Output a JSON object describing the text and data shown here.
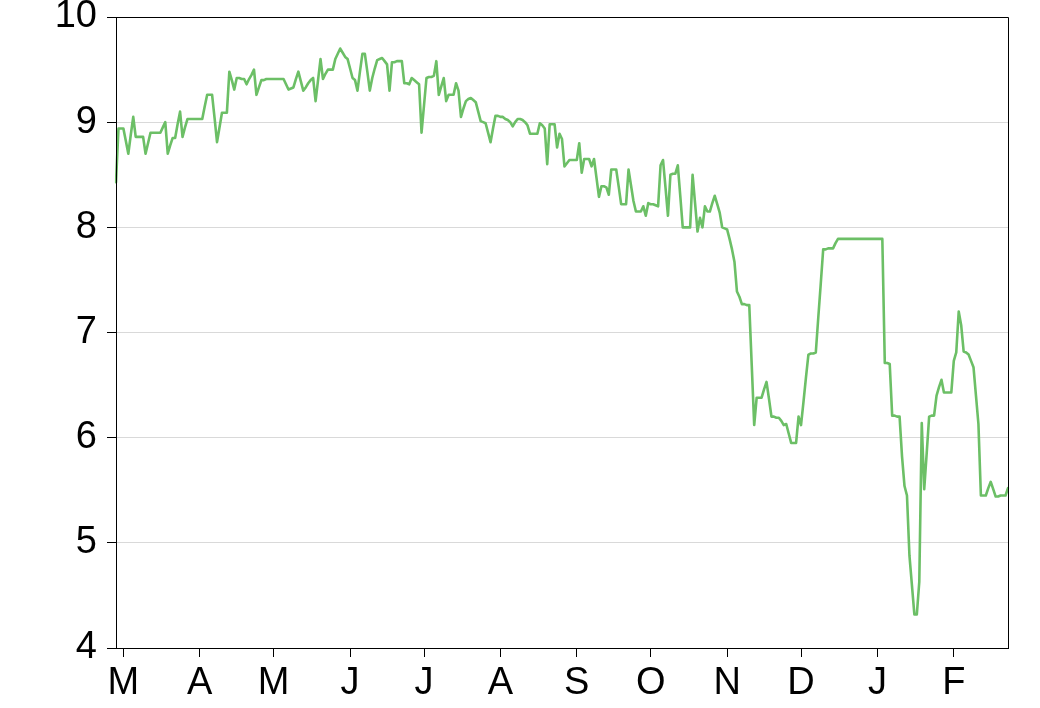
{
  "chart_data": {
    "type": "line",
    "color": "#6cbf66",
    "grid": "y",
    "ylim": [
      4,
      10
    ],
    "yticks": [
      4,
      5,
      6,
      7,
      8,
      9,
      10
    ],
    "categories": [
      null,
      null,
      null,
      "M",
      null,
      null,
      null,
      null,
      null,
      null,
      null,
      null,
      null,
      null,
      null,
      null,
      null,
      null,
      null,
      null,
      null,
      null,
      null,
      null,
      null,
      null,
      null,
      null,
      null,
      null,
      null,
      null,
      null,
      null,
      "A",
      null,
      null,
      null,
      null,
      null,
      null,
      null,
      null,
      null,
      null,
      null,
      null,
      null,
      null,
      null,
      null,
      null,
      null,
      null,
      null,
      null,
      null,
      null,
      null,
      null,
      null,
      null,
      null,
      null,
      "M",
      null,
      null,
      null,
      null,
      null,
      null,
      null,
      null,
      null,
      null,
      null,
      null,
      null,
      null,
      null,
      null,
      null,
      null,
      null,
      null,
      null,
      null,
      null,
      null,
      null,
      null,
      null,
      null,
      null,
      null,
      "J",
      null,
      null,
      null,
      null,
      null,
      null,
      null,
      null,
      null,
      null,
      null,
      null,
      null,
      null,
      null,
      null,
      null,
      null,
      null,
      null,
      null,
      null,
      null,
      null,
      null,
      null,
      null,
      null,
      null,
      "J",
      null,
      null,
      null,
      null,
      null,
      null,
      null,
      null,
      null,
      null,
      null,
      null,
      null,
      null,
      null,
      null,
      null,
      null,
      null,
      null,
      null,
      null,
      null,
      null,
      null,
      null,
      null,
      null,
      null,
      null,
      "A",
      null,
      null,
      null,
      null,
      null,
      null,
      null,
      null,
      null,
      null,
      null,
      null,
      null,
      null,
      null,
      null,
      null,
      null,
      null,
      null,
      null,
      null,
      null,
      null,
      null,
      null,
      null,
      null,
      null,
      null,
      "S",
      null,
      null,
      null,
      null,
      null,
      null,
      null,
      null,
      null,
      null,
      null,
      null,
      null,
      null,
      null,
      null,
      null,
      null,
      null,
      null,
      null,
      null,
      null,
      null,
      null,
      null,
      null,
      null,
      null,
      "O",
      null,
      null,
      null,
      null,
      null,
      null,
      null,
      null,
      null,
      null,
      null,
      null,
      null,
      null,
      null,
      null,
      null,
      null,
      null,
      null,
      null,
      null,
      null,
      null,
      null,
      null,
      null,
      null,
      null,
      null,
      "N",
      null,
      null,
      null,
      null,
      null,
      null,
      null,
      null,
      null,
      null,
      null,
      null,
      null,
      null,
      null,
      null,
      null,
      null,
      null,
      null,
      null,
      null,
      null,
      null,
      null,
      null,
      null,
      null,
      null,
      "D",
      null,
      null,
      null,
      null,
      null,
      null,
      null,
      null,
      null,
      null,
      null,
      null,
      null,
      null,
      null,
      null,
      null,
      null,
      null,
      null,
      null,
      null,
      null,
      null,
      null,
      null,
      null,
      null,
      null,
      null,
      "J",
      null,
      null,
      null,
      null,
      null,
      null,
      null,
      null,
      null,
      null,
      null,
      null,
      null,
      null,
      null,
      null,
      null,
      null,
      null,
      null,
      null,
      null,
      null,
      null,
      null,
      null,
      null,
      null,
      null,
      null,
      "F",
      null,
      null,
      null,
      null,
      null,
      null,
      null,
      null,
      null,
      null,
      null,
      null,
      null,
      null,
      null,
      null,
      null,
      null,
      null,
      null,
      null,
      null
    ],
    "values": [
      8.43,
      8.94,
      8.94,
      8.94,
      8.82,
      8.7,
      8.88,
      9.05,
      8.86,
      8.86,
      8.86,
      8.86,
      8.7,
      8.8,
      8.9,
      8.9,
      8.9,
      8.9,
      8.9,
      8.95,
      9.0,
      8.7,
      8.78,
      8.85,
      8.85,
      8.98,
      9.1,
      8.86,
      8.95,
      9.03,
      9.03,
      9.03,
      9.03,
      9.03,
      9.03,
      9.03,
      9.15,
      9.26,
      9.26,
      9.26,
      9.04,
      8.81,
      8.95,
      9.09,
      9.09,
      9.09,
      9.48,
      9.4,
      9.31,
      9.42,
      9.42,
      9.41,
      9.41,
      9.36,
      9.41,
      9.45,
      9.5,
      9.26,
      9.33,
      9.4,
      9.4,
      9.41,
      9.41,
      9.41,
      9.41,
      9.41,
      9.41,
      9.41,
      9.41,
      9.36,
      9.31,
      9.32,
      9.33,
      9.41,
      9.48,
      9.39,
      9.3,
      9.33,
      9.37,
      9.4,
      9.42,
      9.2,
      9.4,
      9.6,
      9.41,
      9.46,
      9.5,
      9.5,
      9.5,
      9.6,
      9.65,
      9.7,
      9.66,
      9.62,
      9.6,
      9.51,
      9.42,
      9.4,
      9.3,
      9.48,
      9.65,
      9.65,
      9.48,
      9.3,
      9.42,
      9.51,
      9.59,
      9.6,
      9.61,
      9.58,
      9.55,
      9.3,
      9.57,
      9.57,
      9.58,
      9.58,
      9.58,
      9.37,
      9.37,
      9.36,
      9.42,
      9.4,
      9.38,
      9.36,
      8.9,
      9.16,
      9.42,
      9.43,
      9.43,
      9.44,
      9.58,
      9.26,
      9.34,
      9.42,
      9.2,
      9.26,
      9.26,
      9.26,
      9.37,
      9.3,
      9.05,
      9.13,
      9.2,
      9.22,
      9.23,
      9.21,
      9.19,
      9.1,
      9.01,
      9.0,
      8.99,
      8.9,
      8.81,
      8.94,
      9.06,
      9.06,
      9.05,
      9.05,
      9.03,
      9.02,
      9.0,
      8.96,
      9.0,
      9.03,
      9.03,
      9.02,
      9.0,
      8.97,
      8.89,
      8.89,
      8.89,
      8.89,
      8.99,
      8.97,
      8.94,
      8.6,
      8.98,
      8.98,
      8.98,
      8.76,
      8.89,
      8.84,
      8.58,
      8.61,
      8.64,
      8.64,
      8.64,
      8.64,
      8.8,
      8.52,
      8.65,
      8.65,
      8.65,
      8.58,
      8.65,
      8.47,
      8.29,
      8.39,
      8.39,
      8.38,
      8.31,
      8.55,
      8.55,
      8.55,
      8.39,
      8.22,
      8.22,
      8.22,
      8.55,
      8.4,
      8.25,
      8.15,
      8.15,
      8.15,
      8.2,
      8.11,
      8.23,
      8.22,
      8.22,
      8.21,
      8.2,
      8.59,
      8.64,
      8.38,
      8.11,
      8.5,
      8.51,
      8.51,
      8.59,
      8.3,
      8.0,
      8.0,
      8.0,
      8.0,
      8.5,
      8.23,
      7.96,
      8.09,
      8.0,
      8.2,
      8.15,
      8.15,
      8.23,
      8.3,
      8.22,
      8.14,
      8.0,
      7.99,
      7.98,
      7.89,
      7.79,
      7.67,
      7.39,
      7.34,
      7.27,
      7.27,
      7.26,
      7.26,
      6.69,
      6.12,
      6.38,
      6.38,
      6.38,
      6.46,
      6.53,
      6.37,
      6.2,
      6.2,
      6.19,
      6.19,
      6.16,
      6.12,
      6.13,
      6.04,
      5.95,
      5.95,
      5.95,
      6.2,
      6.12,
      6.34,
      6.57,
      6.79,
      6.8,
      6.8,
      6.81,
      7.14,
      7.46,
      7.79,
      7.79,
      7.8,
      7.8,
      7.8,
      7.85,
      7.89,
      7.89,
      7.89,
      7.89,
      7.89,
      7.89,
      7.89,
      7.89,
      7.89,
      7.89,
      7.89,
      7.89,
      7.89,
      7.89,
      7.89,
      7.89,
      7.89,
      7.89,
      7.89,
      6.71,
      6.71,
      6.7,
      6.21,
      6.21,
      6.2,
      6.2,
      5.82,
      5.54,
      5.45,
      4.88,
      4.6,
      4.32,
      4.32,
      4.63,
      6.14,
      5.51,
      5.85,
      6.2,
      6.21,
      6.21,
      6.4,
      6.48,
      6.55,
      6.43,
      6.43,
      6.43,
      6.43,
      6.73,
      6.81,
      7.2,
      7.07,
      6.82,
      6.81,
      6.79,
      6.73,
      6.67,
      6.4,
      6.13,
      5.45,
      5.45,
      5.45,
      5.52,
      5.58,
      5.51,
      5.44,
      5.44,
      5.45,
      5.45,
      5.45,
      5.52
    ]
  }
}
